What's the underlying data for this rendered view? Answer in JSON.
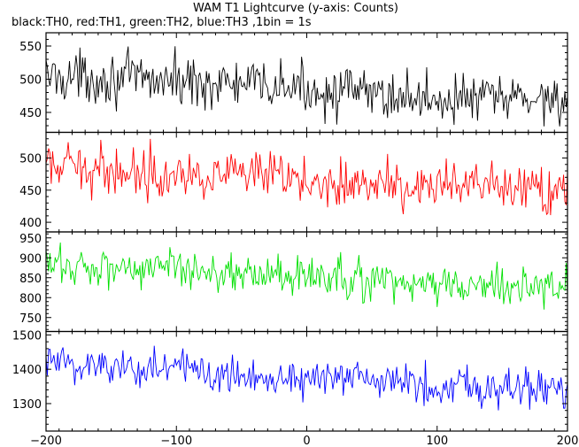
{
  "chart_data": {
    "type": "line",
    "title": "WAM T1 Lightcurve (y-axis: Counts)",
    "subtitle": "black:TH0, red:TH1, green:TH2, blue:TH3 ,1bin = 1s",
    "x_range": [
      -200,
      200
    ],
    "x_ticks": [
      -200,
      -100,
      0,
      100,
      200
    ],
    "grid": false,
    "panels": [
      {
        "name": "TH0",
        "color": "#000000",
        "ylim": [
          420,
          570
        ],
        "y_ticks": [
          450,
          500,
          550
        ],
        "trend": [
          {
            "x": -200,
            "y": 505
          },
          {
            "x": -100,
            "y": 498
          },
          {
            "x": 0,
            "y": 485
          },
          {
            "x": 100,
            "y": 470
          },
          {
            "x": 200,
            "y": 472
          }
        ],
        "noise": 28
      },
      {
        "name": "TH1",
        "color": "#ff0000",
        "ylim": [
          385,
          540
        ],
        "y_ticks": [
          400,
          450,
          500
        ],
        "trend": [
          {
            "x": -200,
            "y": 485
          },
          {
            "x": -100,
            "y": 478
          },
          {
            "x": 0,
            "y": 465
          },
          {
            "x": 100,
            "y": 455
          },
          {
            "x": 200,
            "y": 450
          }
        ],
        "noise": 28
      },
      {
        "name": "TH2",
        "color": "#00e000",
        "ylim": [
          715,
          965
        ],
        "y_ticks": [
          750,
          800,
          850,
          900,
          950
        ],
        "trend": [
          {
            "x": -200,
            "y": 880
          },
          {
            "x": -100,
            "y": 875
          },
          {
            "x": 0,
            "y": 850
          },
          {
            "x": 100,
            "y": 830
          },
          {
            "x": 200,
            "y": 830
          }
        ],
        "noise": 38
      },
      {
        "name": "TH3",
        "color": "#0000ff",
        "ylim": [
          1220,
          1510
        ],
        "y_ticks": [
          1300,
          1400,
          1500
        ],
        "trend": [
          {
            "x": -200,
            "y": 1420
          },
          {
            "x": -100,
            "y": 1400
          },
          {
            "x": 0,
            "y": 1375
          },
          {
            "x": 100,
            "y": 1355
          },
          {
            "x": 200,
            "y": 1345
          }
        ],
        "noise": 45
      }
    ]
  }
}
